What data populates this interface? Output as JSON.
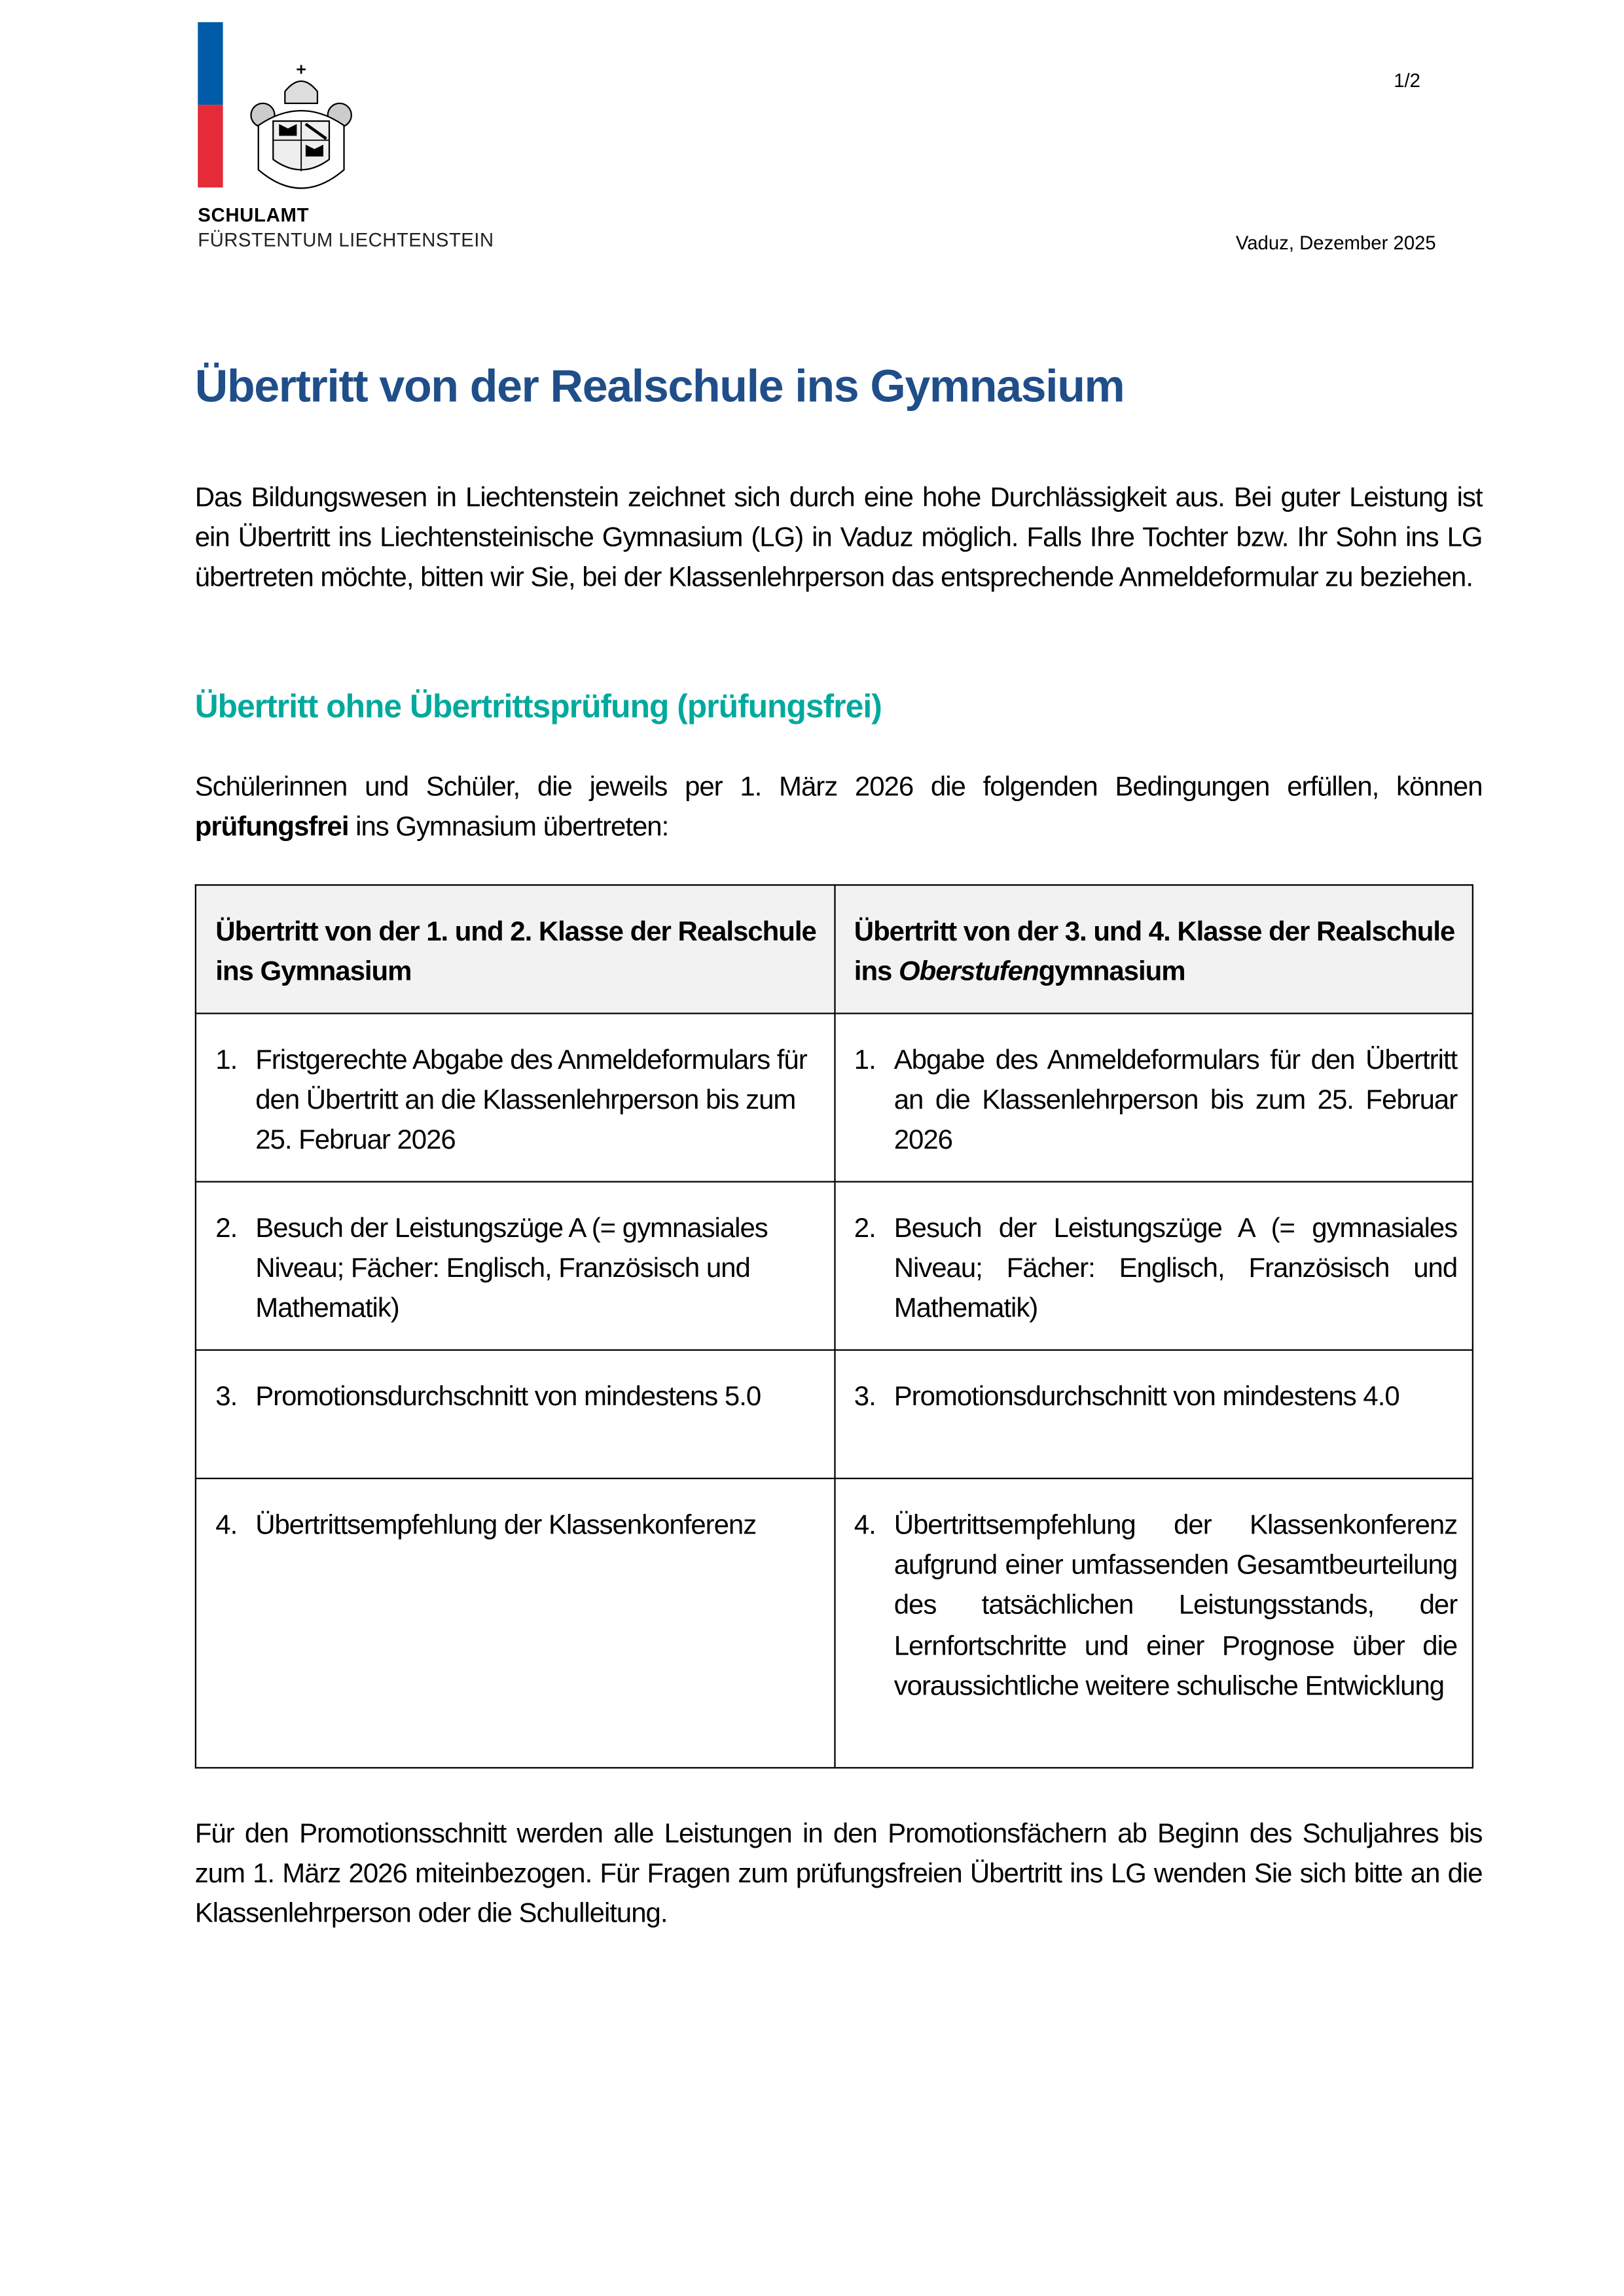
{
  "header": {
    "page_number": "1/2",
    "org_line1": "SCHULAMT",
    "org_line2": "FÜRSTENTUM LIECHTENSTEIN",
    "date": "Vaduz, Dezember 2025",
    "flag_colors": [
      "#005ca8",
      "#e52a38"
    ],
    "logo": "coat-of-arms"
  },
  "title": "Übertritt von der Realschule ins Gymnasium",
  "intro": "Das Bildungswesen in Liechtenstein zeichnet sich durch eine hohe Durchlässigkeit aus. Bei guter Leistung ist ein Übertritt ins Liechtensteinische Gymnasium (LG) in Vaduz möglich. Falls Ihre Tochter bzw. Ihr Sohn ins LG übertreten möchte, bitten wir Sie, bei der Klassenlehrperson das entsprechende Anmeldeformular zu beziehen.",
  "section_heading": "Übertritt ohne Übertrittsprüfung (prüfungsfrei)",
  "conditions_intro": {
    "before": "Schülerinnen und Schüler, die jeweils per 1. März 2026 die folgenden Bedingungen erfüllen, können ",
    "bold": "prüfungsfrei",
    "after": " ins Gymnasium übertreten:"
  },
  "table": {
    "col1_header": "Übertritt von der 1. und 2. Klasse der Realschule ins Gymnasium",
    "col2_header_before": "Übertritt von der 3. und 4. Klasse der Realschule ins ",
    "col2_header_italic": "Oberstufen",
    "col2_header_after": "gymnasium",
    "rows": [
      {
        "num": "1.",
        "left": "Fristgerechte Abgabe des Anmeldeformulars für den Übertritt an die Klassenlehrperson bis zum 25. Februar 2026",
        "right": "Abgabe des Anmeldeformulars für den Übertritt an die Klassenlehrperson bis zum 25. Februar 2026"
      },
      {
        "num": "2.",
        "left": "Besuch der Leistungszüge A (= gymnasiales Niveau; Fächer: Englisch, Französisch und Mathematik)",
        "right": "Besuch der Leistungszüge A (= gymnasiales Niveau; Fächer: Englisch, Französisch und Mathematik)"
      },
      {
        "num": "3.",
        "left": "Promotionsdurchschnitt von mindestens 5.0",
        "right": "Promotionsdurchschnitt von mindestens 4.0"
      },
      {
        "num": "4.",
        "left": "Übertrittsempfehlung der Klassenkonferenz",
        "right": "Übertrittsempfehlung der Klassenkonferenz aufgrund einer umfassenden Gesamtbeurteilung des tatsächlichen Leistungsstands, der Lernfortschritte und einer Prognose über die voraussichtliche weitere schulische Entwicklung"
      }
    ]
  },
  "closing": "Für den Promotionsschnitt werden alle Leistungen in den Promotionsfächern ab Beginn des Schuljahres bis zum 1. März 2026 miteinbezogen. Für Fragen zum prüfungsfreien Übertritt ins LG wenden Sie sich bitte an die Klassenlehrperson oder die Schulleitung.",
  "colors": {
    "title": "#1f4e89",
    "section_heading": "#00a99d",
    "table_header_bg": "#f2f2f2"
  }
}
